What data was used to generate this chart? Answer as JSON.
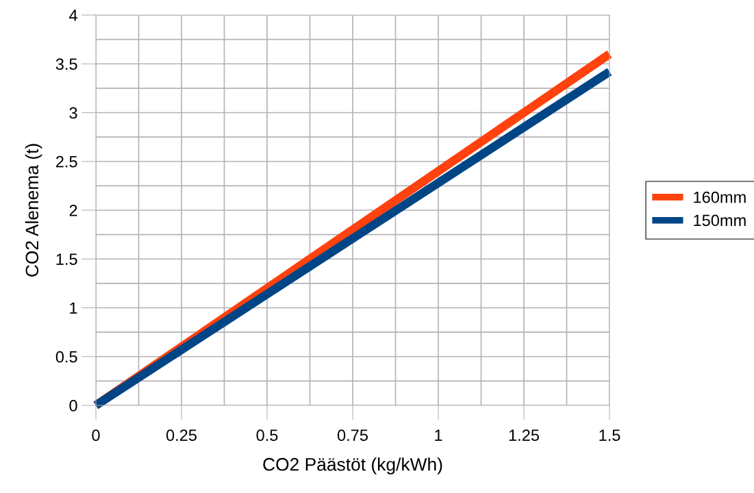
{
  "chart_data": {
    "type": "line",
    "xlabel": "CO2 Päästöt (kg/kWh)",
    "ylabel": "CO2 Alenema (t)",
    "x": [
      0,
      1.5
    ],
    "series": [
      {
        "name": "160mm",
        "color": "#ff420e",
        "values": [
          0,
          3.6
        ]
      },
      {
        "name": "150mm",
        "color": "#004586",
        "values": [
          0,
          3.42
        ]
      }
    ],
    "xlim": [
      0,
      1.5
    ],
    "xticks": [
      0,
      {
        "value": 0.125,
        "label": null
      },
      0.25,
      {
        "value": 0.375,
        "label": null
      },
      0.5,
      {
        "value": 0.625,
        "label": null
      },
      0.75,
      {
        "value": 0.875,
        "label": null
      },
      1,
      {
        "value": 1.125,
        "label": null
      },
      1.25,
      {
        "value": 1.375,
        "label": null
      },
      1.5
    ],
    "ylim": [
      0,
      4
    ],
    "yticks": [
      0,
      {
        "value": 0.25,
        "label": null
      },
      0.5,
      {
        "value": 0.75,
        "label": null
      },
      1,
      {
        "value": 1.25,
        "label": null
      },
      1.5,
      {
        "value": 1.75,
        "label": null
      },
      2,
      {
        "value": 2.25,
        "label": null
      },
      2.5,
      {
        "value": 2.75,
        "label": null
      },
      3,
      {
        "value": 3.25,
        "label": null
      },
      3.5,
      {
        "value": 3.75,
        "label": null
      },
      4
    ],
    "grid": true,
    "legend": "right",
    "marker": "none",
    "line_style": "solid"
  }
}
